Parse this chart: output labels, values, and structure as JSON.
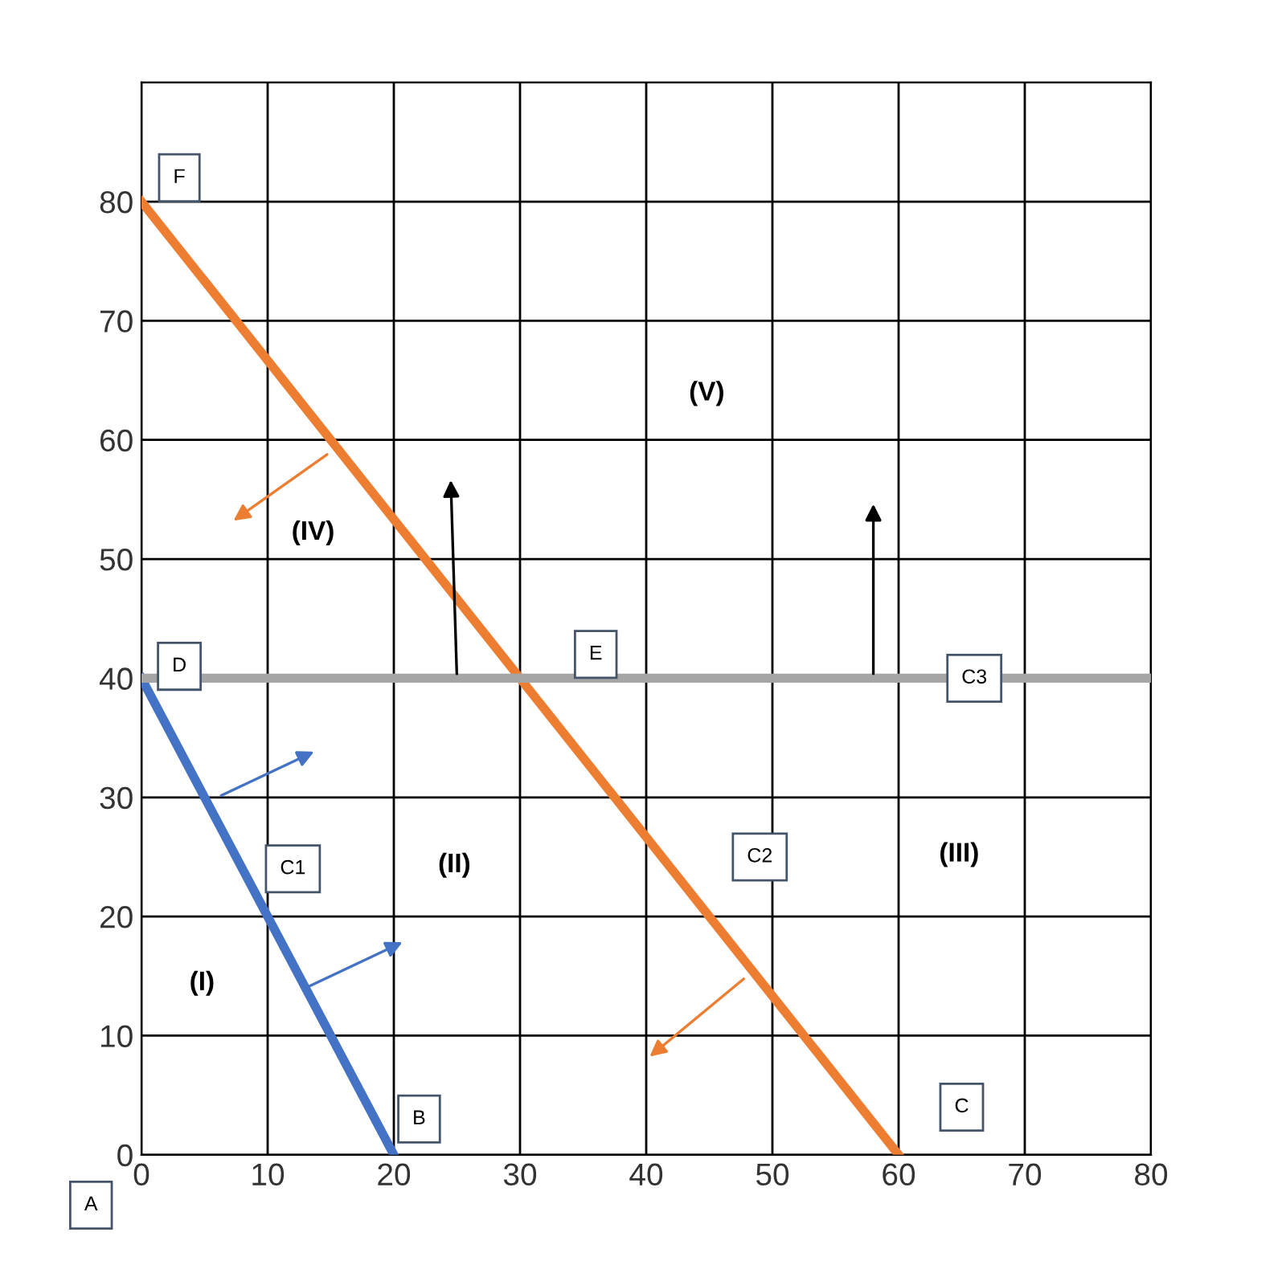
{
  "chart_data": {
    "type": "line",
    "xlim": [
      0,
      80
    ],
    "ylim": [
      0,
      90
    ],
    "xticks": [
      0,
      10,
      20,
      30,
      40,
      50,
      60,
      70,
      80
    ],
    "yticks": [
      0,
      10,
      20,
      30,
      40,
      50,
      60,
      70,
      80
    ],
    "grid": true,
    "marker": "none",
    "line_style": "solid",
    "series": [
      {
        "color": "#4472c4",
        "x": [
          0,
          20
        ],
        "values": [
          40,
          0
        ]
      },
      {
        "color": "#ed7d31",
        "x": [
          0,
          60
        ],
        "values": [
          80,
          0
        ]
      },
      {
        "color": "#a5a5a5",
        "x": [
          0,
          80
        ],
        "values": [
          40,
          40
        ]
      }
    ],
    "annotations": [
      "A",
      {
        "text": "B",
        "x": 22,
        "y": 3
      },
      {
        "text": "C",
        "x": 65,
        "y": 4
      },
      {
        "text": "D",
        "x": 3,
        "y": 41
      },
      {
        "text": "E",
        "x": 36,
        "y": 42
      },
      {
        "text": "F",
        "x": 3,
        "y": 82
      },
      {
        "text": "C1",
        "x": 12,
        "y": 24
      },
      {
        "text": "C2",
        "x": 49,
        "y": 25
      },
      {
        "text": "C3",
        "x": 66,
        "y": 40
      },
      "(I)",
      "(II)",
      "(III)",
      "(IV)",
      "(V)"
    ]
  }
}
